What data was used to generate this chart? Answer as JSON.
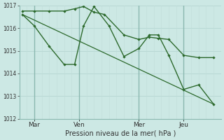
{
  "xlabel": "Pression niveau de la mer( hPa )",
  "bg_color": "#cce8e4",
  "grid_color_h": "#b8d8d4",
  "grid_color_v": "#c0dcd8",
  "line_color": "#2d6a2d",
  "vline_color": "#8ab8b0",
  "ylim": [
    1012,
    1017
  ],
  "yticks": [
    1012,
    1013,
    1014,
    1015,
    1016,
    1017
  ],
  "day_labels": [
    "Mar",
    "Ven",
    "Mer",
    "Jeu"
  ],
  "day_positions": [
    1,
    4,
    8,
    11
  ],
  "vline_positions": [
    1,
    4,
    8,
    11
  ],
  "xlim": [
    0,
    13.5
  ],
  "series1_x": [
    0.2,
    1.0,
    2.0,
    3.0,
    3.7,
    4.3,
    5.0,
    5.7,
    7.0,
    8.0,
    8.7,
    9.3,
    10.0,
    11.0,
    12.0,
    13.0
  ],
  "series1_y": [
    1016.75,
    1016.75,
    1016.75,
    1016.75,
    1016.85,
    1016.95,
    1016.7,
    1016.6,
    1015.7,
    1015.5,
    1015.6,
    1015.55,
    1015.5,
    1014.8,
    1014.7,
    1014.7
  ],
  "series2_x": [
    0.2,
    1.0,
    2.0,
    3.0,
    3.7,
    4.3,
    5.0,
    6.0,
    7.0,
    8.0,
    8.7,
    9.3,
    10.0,
    11.0,
    12.0,
    13.0
  ],
  "series2_y": [
    1016.6,
    1016.1,
    1015.2,
    1014.4,
    1014.4,
    1016.1,
    1016.95,
    1016.1,
    1014.75,
    1015.1,
    1015.7,
    1015.7,
    1014.8,
    1013.3,
    1013.5,
    1012.65
  ],
  "trend_x": [
    0.2,
    13.0
  ],
  "trend_y": [
    1016.6,
    1012.65
  ]
}
